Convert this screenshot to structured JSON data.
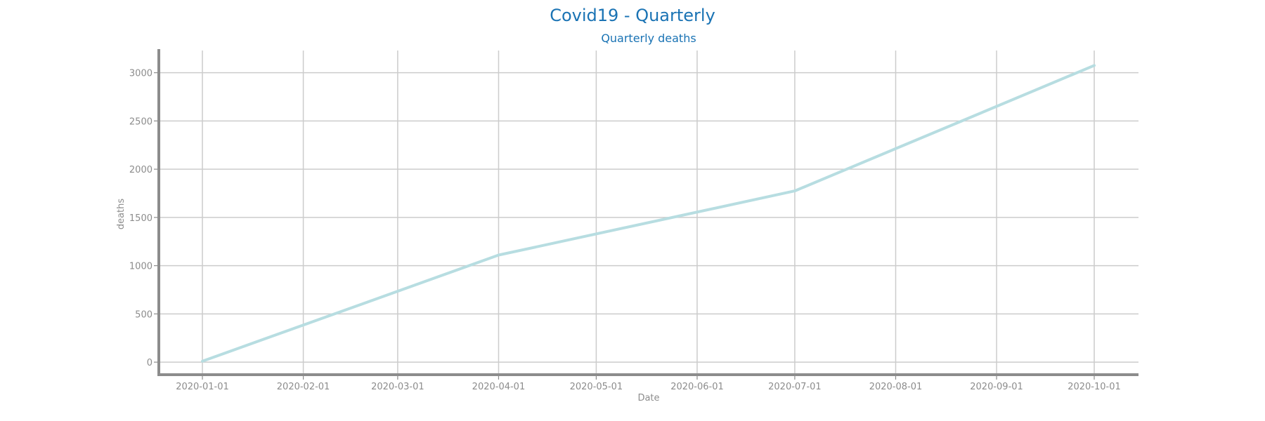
{
  "chart_data": {
    "type": "line",
    "title": "Covid19 - Quarterly",
    "subtitle": "Quarterly deaths",
    "xlabel": "Date",
    "ylabel": "deaths",
    "x": [
      "2020-01-01",
      "2020-02-01",
      "2020-03-01",
      "2020-04-01",
      "2020-05-01",
      "2020-06-01",
      "2020-07-01",
      "2020-08-01",
      "2020-09-01",
      "2020-10-01"
    ],
    "xlim": [
      "2020-01-01",
      "2020-10-01"
    ],
    "ylim": [
      -130,
      3230
    ],
    "yticks": [
      0,
      500,
      1000,
      1500,
      2000,
      2500,
      3000
    ],
    "grid": true,
    "series": [
      {
        "name": "",
        "color": "#b7dde1",
        "points": [
          {
            "x": "2020-01-01",
            "y": 10
          },
          {
            "x": "2020-04-01",
            "y": 1110
          },
          {
            "x": "2020-07-01",
            "y": 1775
          },
          {
            "x": "2020-10-01",
            "y": 3075
          }
        ]
      }
    ]
  }
}
